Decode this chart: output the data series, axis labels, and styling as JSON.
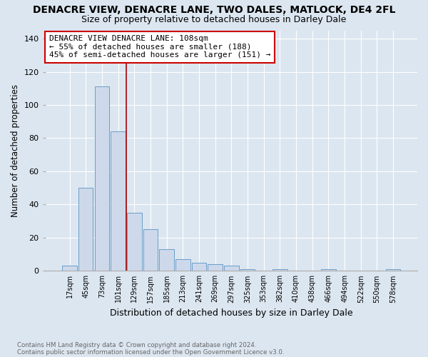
{
  "title": "DENACRE VIEW, DENACRE LANE, TWO DALES, MATLOCK, DE4 2FL",
  "subtitle": "Size of property relative to detached houses in Darley Dale",
  "xlabel": "Distribution of detached houses by size in Darley Dale",
  "ylabel": "Number of detached properties",
  "footnote1": "Contains HM Land Registry data © Crown copyright and database right 2024.",
  "footnote2": "Contains public sector information licensed under the Open Government Licence v3.0.",
  "categories": [
    "17sqm",
    "45sqm",
    "73sqm",
    "101sqm",
    "129sqm",
    "157sqm",
    "185sqm",
    "213sqm",
    "241sqm",
    "269sqm",
    "297sqm",
    "325sqm",
    "353sqm",
    "382sqm",
    "410sqm",
    "438sqm",
    "466sqm",
    "494sqm",
    "522sqm",
    "550sqm",
    "578sqm"
  ],
  "values": [
    3,
    50,
    111,
    84,
    35,
    25,
    13,
    7,
    5,
    4,
    3,
    1,
    0,
    1,
    0,
    0,
    1,
    0,
    0,
    0,
    1
  ],
  "bar_color": "#cdd9ea",
  "bar_edge_color": "#6a9dc8",
  "vline_x": 3.5,
  "vline_color": "#aa0000",
  "annotation_line1": "DENACRE VIEW DENACRE LANE: 108sqm",
  "annotation_line2": "← 55% of detached houses are smaller (188)",
  "annotation_line3": "45% of semi-detached houses are larger (151) →",
  "annotation_box_color": "#ffffff",
  "annotation_box_edge": "#cc0000",
  "ylim": [
    0,
    145
  ],
  "yticks": [
    0,
    20,
    40,
    60,
    80,
    100,
    120,
    140
  ],
  "background_color": "#dce6f0",
  "plot_bg_color": "#dce6f0",
  "title_fontsize": 10,
  "subtitle_fontsize": 9,
  "xlabel_fontsize": 9,
  "ylabel_fontsize": 8.5,
  "annotation_fontsize": 8
}
